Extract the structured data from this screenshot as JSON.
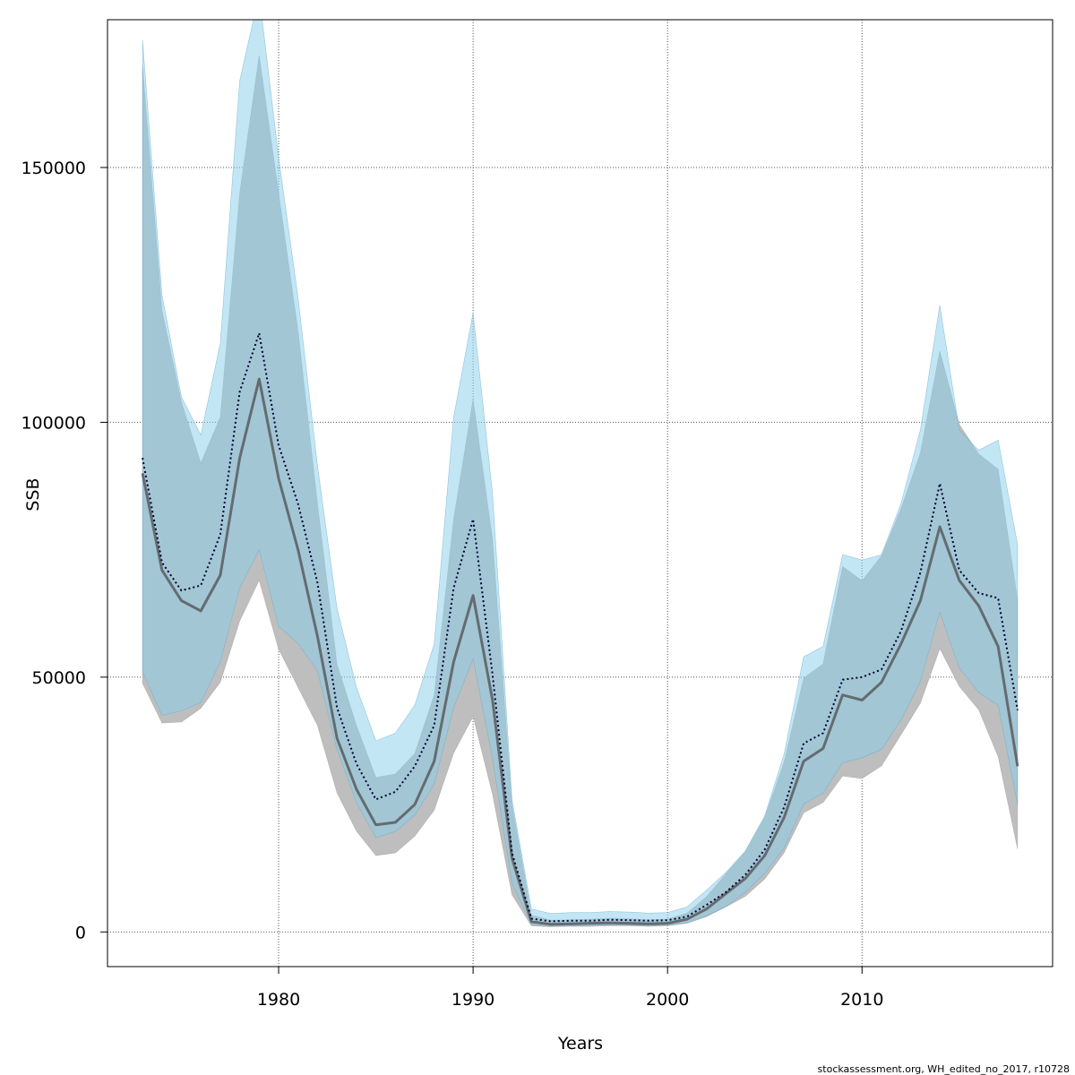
{
  "credit": "stockassessment.org, WH_edited_no_2017, r10728",
  "chart_data": {
    "type": "area",
    "title": "",
    "xlabel": "Years",
    "ylabel": "SSB",
    "xlim": [
      1971.2,
      2019.8
    ],
    "ylim": [
      -6800,
      179000
    ],
    "x_ticks": [
      1980,
      1990,
      2000,
      2010
    ],
    "y_ticks": [
      0,
      50000,
      100000,
      150000
    ],
    "x_tick_labels": [
      "1980",
      "1990",
      "2000",
      "2010"
    ],
    "y_tick_labels": [
      "0",
      "50000",
      "100000",
      "150000"
    ],
    "grid": true,
    "colors": {
      "grey_band": "#bebebe",
      "blue_band": "#87ceeb",
      "grey_line": "#4d4d4d",
      "blue_line": "#000033"
    },
    "x": [
      1973,
      1974,
      1975,
      1976,
      1977,
      1978,
      1979,
      1980,
      1981,
      1982,
      1983,
      1984,
      1985,
      1986,
      1987,
      1988,
      1989,
      1990,
      1991,
      1992,
      1993,
      1994,
      1995,
      1996,
      1997,
      1998,
      1999,
      2000,
      2001,
      2002,
      2003,
      2004,
      2005,
      2006,
      2007,
      2008,
      2009,
      2010,
      2011,
      2012,
      2013,
      2014,
      2015,
      2016,
      2017,
      2018
    ],
    "series": [
      {
        "style": "solid",
        "color": "#4d4d4d",
        "fill": "#bebebe",
        "values": [
          90000,
          71000,
          65000,
          63000,
          70000,
          93000,
          108500,
          89000,
          75000,
          58000,
          38000,
          28000,
          21000,
          21500,
          25000,
          33500,
          53000,
          66000,
          45500,
          14500,
          2000,
          1500,
          1600,
          1700,
          1800,
          1700,
          1600,
          1700,
          2500,
          4500,
          7500,
          10500,
          15000,
          22500,
          33500,
          36000,
          46500,
          45500,
          49000,
          56500,
          65000,
          79500,
          69000,
          64000,
          56000,
          32500
        ],
        "lower": [
          48800,
          41000,
          41200,
          43900,
          49000,
          61000,
          69000,
          55500,
          48000,
          40500,
          27300,
          19800,
          15000,
          15500,
          18800,
          23900,
          35100,
          42300,
          27000,
          7300,
          1200,
          1000,
          1100,
          1100,
          1200,
          1200,
          1100,
          1200,
          1700,
          3000,
          4900,
          7000,
          10400,
          15600,
          23400,
          25400,
          30600,
          30100,
          32600,
          38700,
          44900,
          55600,
          48200,
          43600,
          34400,
          16300
        ],
        "upper": [
          170000,
          122000,
          104000,
          92000,
          101000,
          145000,
          172000,
          145000,
          118000,
          84000,
          52500,
          40500,
          30300,
          31000,
          35000,
          46500,
          81000,
          104500,
          77000,
          25000,
          3300,
          2300,
          2400,
          2500,
          2700,
          2600,
          2400,
          2500,
          3700,
          6900,
          11400,
          15700,
          22500,
          33400,
          49800,
          52600,
          71700,
          68900,
          73800,
          83000,
          94000,
          114000,
          99600,
          93800,
          90800,
          65200
        ]
      },
      {
        "style": "dotted",
        "color": "#000033",
        "fill": "#87ceeb",
        "values": [
          93000,
          72500,
          67000,
          68000,
          78000,
          106000,
          117500,
          95500,
          84000,
          68500,
          44000,
          33000,
          26000,
          27500,
          32500,
          40500,
          67500,
          81000,
          50500,
          15500,
          2600,
          2100,
          2200,
          2200,
          2400,
          2300,
          2200,
          2300,
          3000,
          5300,
          7800,
          11200,
          16200,
          24500,
          37000,
          39000,
          49500,
          50000,
          51500,
          59000,
          70500,
          88000,
          71000,
          66500,
          65500,
          43500
        ],
        "lower": [
          51000,
          42500,
          43400,
          45000,
          53000,
          67500,
          75000,
          60000,
          56600,
          51200,
          35800,
          25400,
          18500,
          19700,
          22900,
          29000,
          44000,
          53600,
          34000,
          9600,
          1500,
          1200,
          1300,
          1300,
          1400,
          1400,
          1300,
          1400,
          1800,
          3200,
          5000,
          7800,
          11500,
          16500,
          25100,
          27300,
          33200,
          34200,
          35800,
          41600,
          49200,
          62800,
          51800,
          47000,
          44500,
          25000
        ],
        "upper": [
          175000,
          125000,
          105000,
          97500,
          115500,
          167000,
          184000,
          152000,
          124500,
          91500,
          63500,
          48000,
          37500,
          39000,
          44500,
          56500,
          101000,
          121500,
          86000,
          26000,
          4500,
          3600,
          3800,
          3800,
          4000,
          3900,
          3700,
          3800,
          4900,
          8200,
          11700,
          15900,
          22800,
          35000,
          54000,
          56000,
          74000,
          73000,
          74000,
          84000,
          98500,
          123000,
          98500,
          94500,
          96500,
          76000
        ]
      }
    ]
  }
}
